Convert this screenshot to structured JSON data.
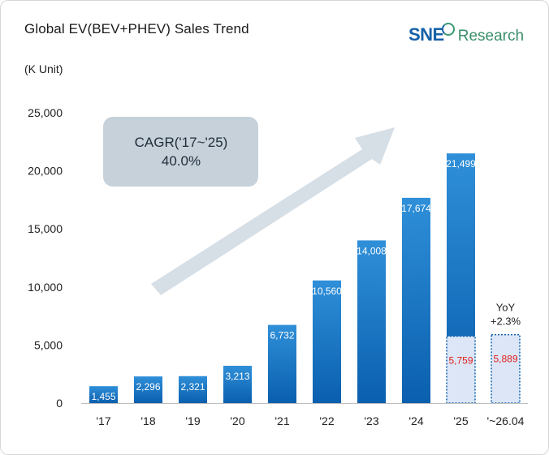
{
  "title": "Global EV(BEV+PHEV) Sales Trend",
  "logo": {
    "sne": "SNE",
    "research": "Research"
  },
  "unit_label": "(K Unit)",
  "cagr": {
    "line1": "CAGR('17~'25)",
    "line2": "40.0%"
  },
  "yoy": {
    "line1": "YoY",
    "line2": "+2.3%"
  },
  "colors": {
    "bar_top": "#2f8fd8",
    "bar_bottom": "#0a5fae",
    "partial_fill": "#dce6f6",
    "partial_border": "#0a5fae",
    "partial_label": "#e0201b",
    "arrow": "#cfd8e2",
    "cagr_box": "#c6d1da"
  },
  "chart_data": {
    "type": "bar",
    "title": "Global EV(BEV+PHEV) Sales Trend",
    "ylabel": "(K Unit)",
    "ylim": [
      0,
      25000
    ],
    "yticks": [
      0,
      5000,
      10000,
      15000,
      20000,
      25000
    ],
    "ytick_labels": [
      "0",
      "5,000",
      "10,000",
      "15,000",
      "20,000",
      "25,000"
    ],
    "categories": [
      "'17",
      "'18",
      "'19",
      "'20",
      "'21",
      "'22",
      "'23",
      "'24",
      "'25",
      "'~26.04"
    ],
    "values": [
      1455,
      2296,
      2321,
      3213,
      6732,
      10560,
      14008,
      17674,
      21499,
      null
    ],
    "value_labels": [
      "1,455",
      "2,296",
      "2,321",
      "3,213",
      "6,732",
      "10,560",
      "14,008",
      "17,674",
      "21,499",
      ""
    ],
    "partial_series": {
      "values": [
        null,
        null,
        null,
        null,
        null,
        null,
        null,
        null,
        5759,
        5889
      ],
      "value_labels": [
        "",
        "",
        "",
        "",
        "",
        "",
        "",
        "",
        "5,759",
        "5,889"
      ]
    },
    "grid": false
  }
}
